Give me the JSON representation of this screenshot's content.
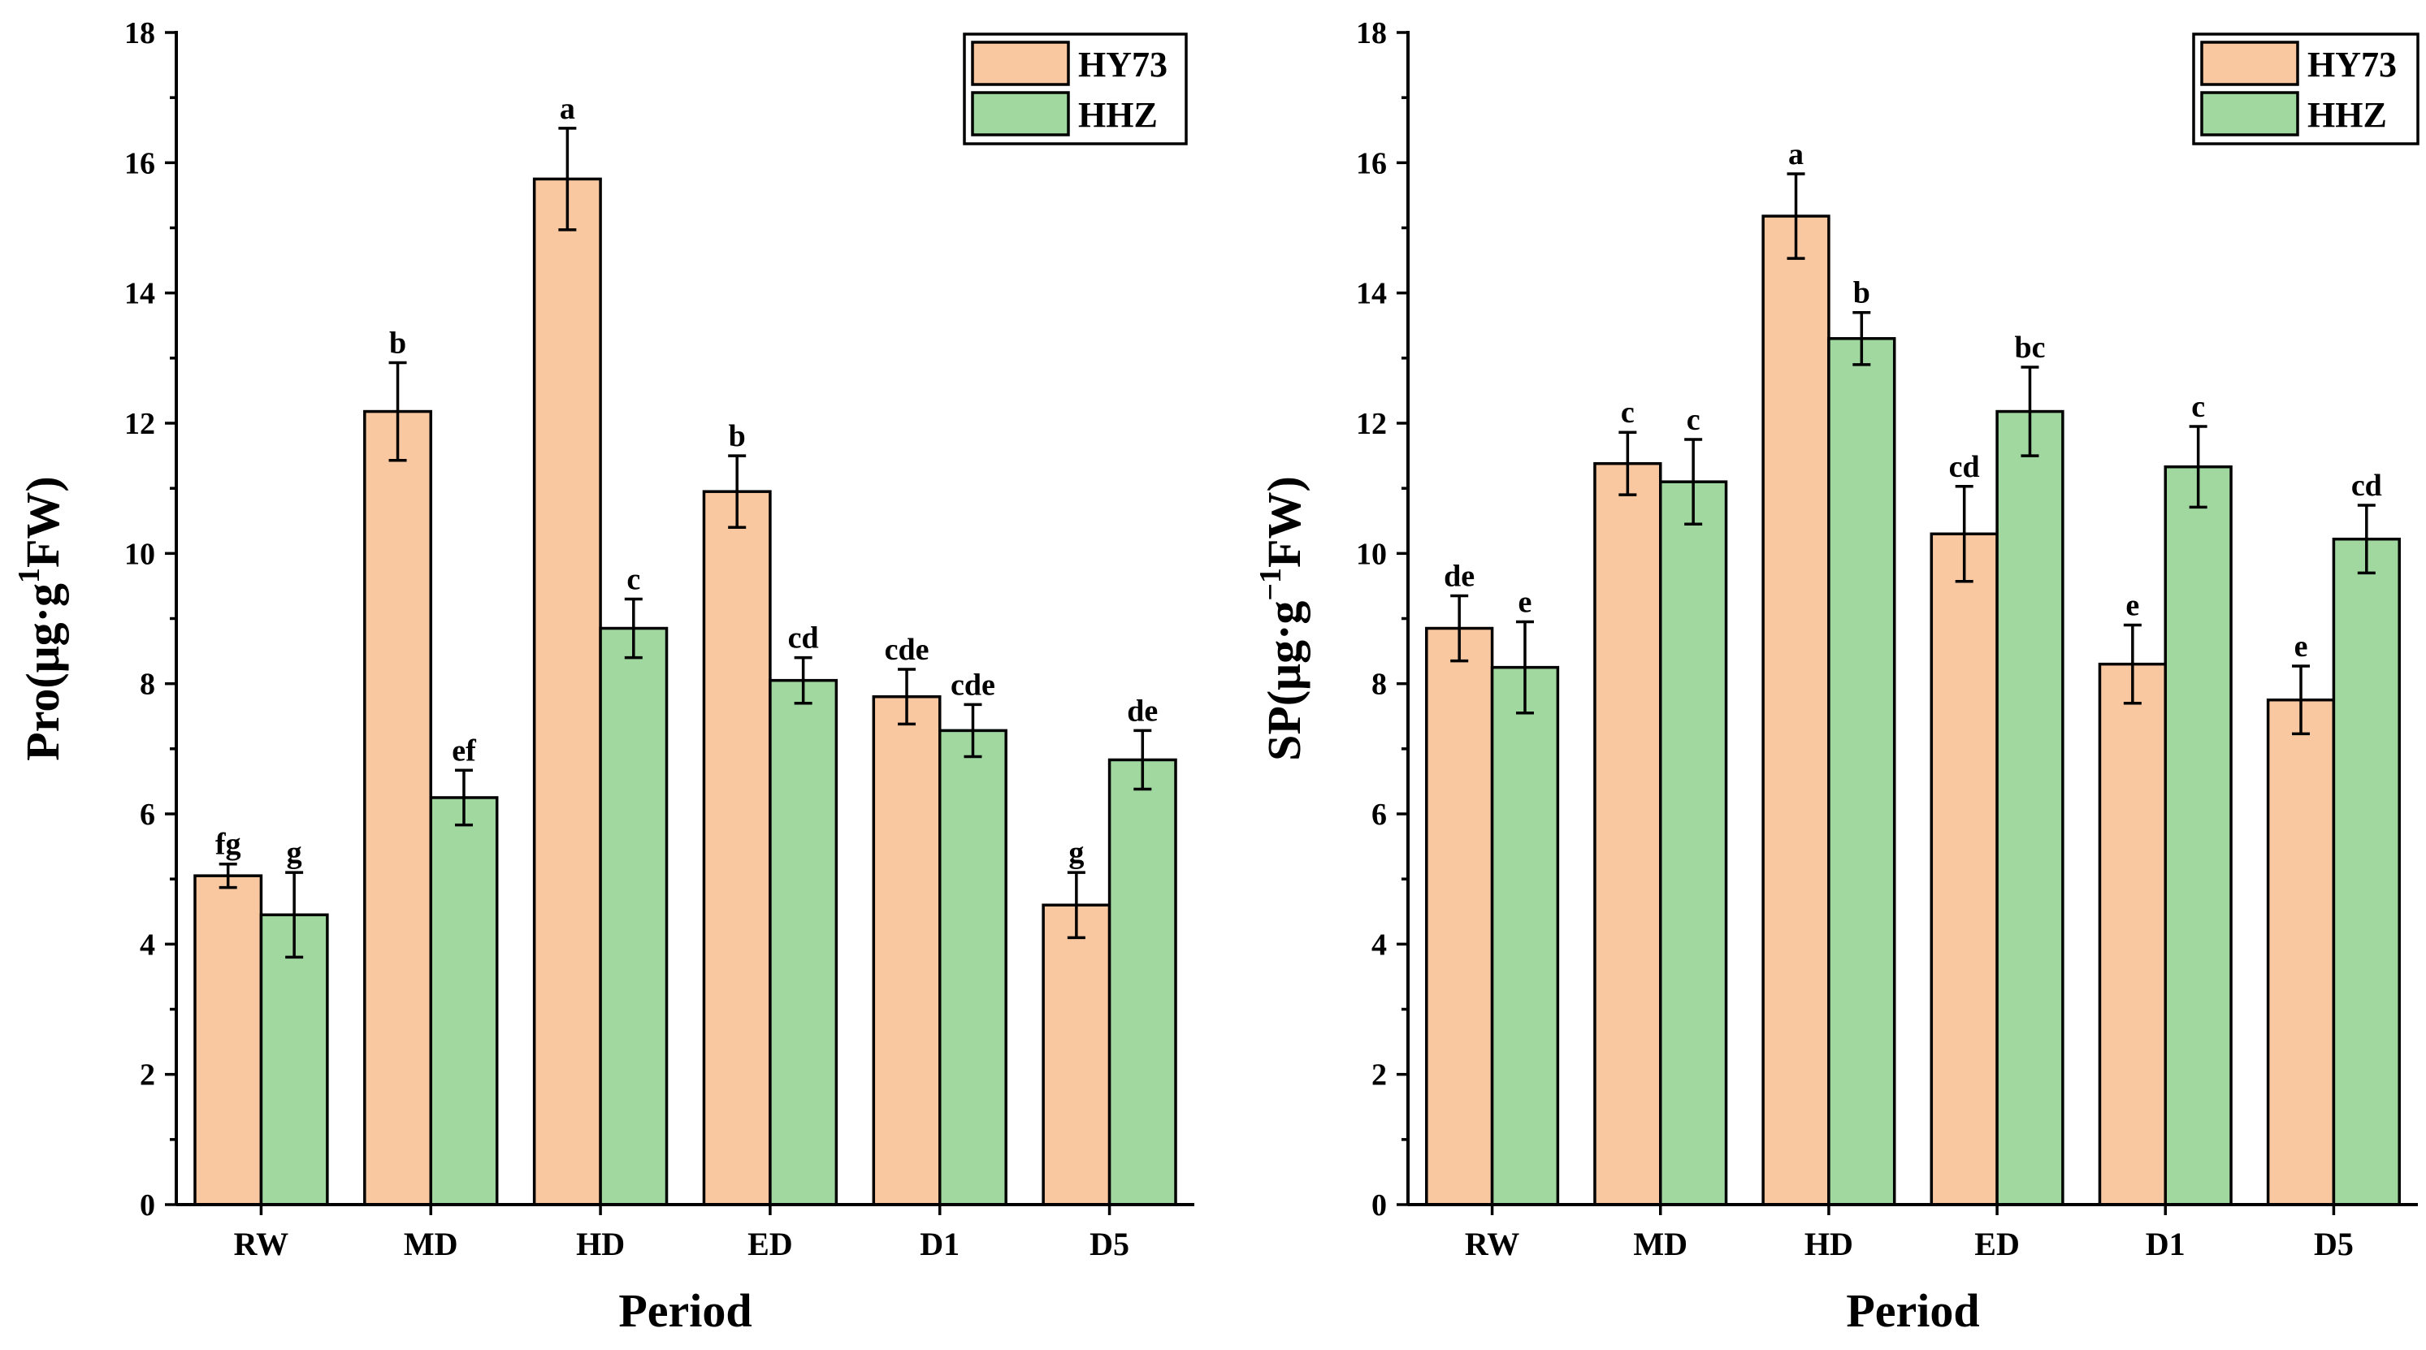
{
  "chart_data": [
    {
      "type": "bar",
      "xlabel": "Period",
      "ylabel_main": "Pro(μg·g",
      "ylabel_sup": "1",
      "ylabel_end": "FW)",
      "ylim": [
        0,
        18
      ],
      "yticks": [
        0,
        2,
        4,
        6,
        8,
        10,
        12,
        14,
        16,
        18
      ],
      "categories": [
        "RW",
        "MD",
        "HD",
        "ED",
        "D1",
        "D5"
      ],
      "legend": [
        "HY73",
        "HHZ"
      ],
      "series": [
        {
          "name": "HY73",
          "color": "#FAC8A0",
          "values": [
            5.05,
            12.18,
            15.75,
            10.95,
            7.8,
            4.6
          ],
          "errors": [
            0.18,
            0.75,
            0.78,
            0.55,
            0.42,
            0.5
          ],
          "labels": [
            "fg",
            "b",
            "a",
            "b",
            "cde",
            "g"
          ]
        },
        {
          "name": "HHZ",
          "color": "#A0D8A0",
          "values": [
            4.45,
            6.25,
            8.85,
            8.05,
            7.28,
            6.83
          ],
          "errors": [
            0.65,
            0.42,
            0.45,
            0.35,
            0.4,
            0.45
          ],
          "labels": [
            "g",
            "ef",
            "c",
            "cd",
            "cde",
            "de"
          ]
        }
      ]
    },
    {
      "type": "bar",
      "xlabel": "Period",
      "ylabel_main": "SP(μg·g",
      "ylabel_sup": "−1",
      "ylabel_end": "FW)",
      "ylim": [
        0,
        18
      ],
      "yticks": [
        0,
        2,
        4,
        6,
        8,
        10,
        12,
        14,
        16,
        18
      ],
      "categories": [
        "RW",
        "MD",
        "HD",
        "ED",
        "D1",
        "D5"
      ],
      "legend": [
        "HY73",
        "HHZ"
      ],
      "series": [
        {
          "name": "HY73",
          "color": "#FAC8A0",
          "values": [
            8.85,
            11.38,
            15.18,
            10.3,
            8.3,
            7.75
          ],
          "errors": [
            0.5,
            0.48,
            0.65,
            0.73,
            0.6,
            0.52
          ],
          "labels": [
            "de",
            "c",
            "a",
            "cd",
            "e",
            "e"
          ]
        },
        {
          "name": "HHZ",
          "color": "#A0D8A0",
          "values": [
            8.25,
            11.1,
            13.3,
            12.18,
            11.33,
            10.22
          ],
          "errors": [
            0.7,
            0.65,
            0.4,
            0.68,
            0.62,
            0.52
          ],
          "labels": [
            "e",
            "c",
            "b",
            "bc",
            "c",
            "cd"
          ]
        }
      ]
    }
  ]
}
